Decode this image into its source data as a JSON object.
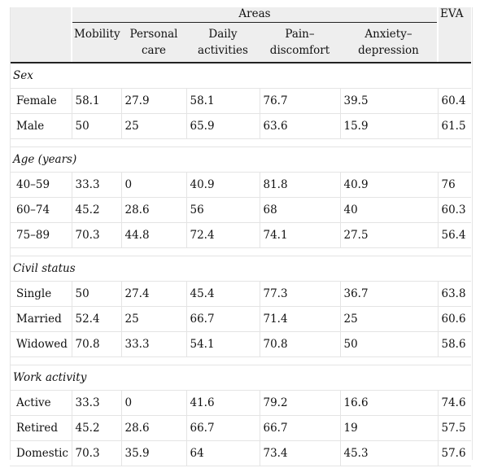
{
  "header": {
    "areas": "Areas",
    "eva": "EVA",
    "columns": [
      "",
      "Mobility",
      "Personal care",
      "Daily activities",
      "Pain–discomfort",
      "Anxiety–depression",
      ""
    ]
  },
  "groups": [
    {
      "title": "Sex",
      "rows": [
        {
          "label": "Female",
          "values": [
            "58.1",
            "27.9",
            "58.1",
            "76.7",
            "39.5",
            "60.4"
          ]
        },
        {
          "label": "Male",
          "values": [
            "50",
            "25",
            "65.9",
            "63.6",
            "15.9",
            "61.5"
          ]
        }
      ]
    },
    {
      "title": "Age (years)",
      "rows": [
        {
          "label": "40–59",
          "values": [
            "33.3",
            "0",
            "40.9",
            "81.8",
            "40.9",
            "76"
          ]
        },
        {
          "label": "60–74",
          "values": [
            "45.2",
            "28.6",
            "56",
            "68",
            "40",
            "60.3"
          ]
        },
        {
          "label": "75–89",
          "values": [
            "70.3",
            "44.8",
            "72.4",
            "74.1",
            "27.5",
            "56.4"
          ]
        }
      ]
    },
    {
      "title": "Civil status",
      "rows": [
        {
          "label": "Single",
          "values": [
            "50",
            "27.4",
            "45.4",
            "77.3",
            "36.7",
            "63.8"
          ]
        },
        {
          "label": "Married",
          "values": [
            "52.4",
            "25",
            "66.7",
            "71.4",
            "25",
            "60.6"
          ]
        },
        {
          "label": "Widowed",
          "values": [
            "70.8",
            "33.3",
            "54.1",
            "70.8",
            "50",
            "58.6"
          ]
        }
      ]
    },
    {
      "title": "Work activity",
      "rows": [
        {
          "label": "Active",
          "values": [
            "33.3",
            "0",
            "41.6",
            "79.2",
            "16.6",
            "74.6"
          ]
        },
        {
          "label": "Retired",
          "values": [
            "45.2",
            "28.6",
            "66.7",
            "66.7",
            "19",
            "57.5"
          ]
        },
        {
          "label": "Domestic",
          "values": [
            "70.3",
            "35.9",
            "64",
            "73.4",
            "45.3",
            "57.6"
          ]
        }
      ]
    }
  ]
}
